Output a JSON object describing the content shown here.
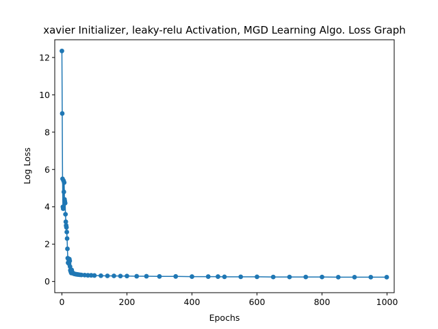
{
  "chart_data": {
    "type": "line",
    "title": "xavier Initializer, leaky-relu Activation, MGD Learning Algo. Loss Graph",
    "xlabel": "Epochs",
    "ylabel": "Log Loss",
    "xlim": [
      -22,
      1022
    ],
    "ylim": [
      -0.6,
      12.95
    ],
    "xticks": [
      0,
      200,
      400,
      600,
      800,
      1000
    ],
    "yticks": [
      0,
      2,
      4,
      6,
      8,
      10,
      12
    ],
    "grid": false,
    "marker": "circle",
    "color": "#1f77b4",
    "series": [
      {
        "x": [
          0,
          1,
          2,
          3,
          4,
          5,
          6,
          7,
          8,
          9,
          10,
          11,
          12,
          13,
          14,
          15,
          16,
          17,
          18,
          19,
          20,
          21,
          22,
          23,
          24,
          25,
          26,
          27,
          28,
          29,
          30,
          32,
          34,
          36,
          38,
          40,
          43,
          46,
          50,
          55,
          60,
          70,
          80,
          90,
          100,
          120,
          140,
          160,
          180,
          200,
          230,
          260,
          300,
          350,
          400,
          450,
          480,
          500,
          550,
          600,
          650,
          700,
          750,
          800,
          850,
          900,
          950,
          999
        ],
        "y": [
          12.35,
          9.0,
          5.5,
          4.0,
          3.9,
          5.4,
          4.8,
          5.3,
          4.4,
          4.3,
          4.2,
          3.6,
          3.2,
          3.0,
          2.9,
          2.65,
          2.3,
          1.75,
          1.25,
          1.0,
          1.2,
          1.05,
          0.95,
          1.2,
          1.1,
          0.8,
          0.6,
          0.55,
          0.5,
          0.45,
          0.62,
          0.5,
          0.45,
          0.42,
          0.41,
          0.4,
          0.39,
          0.38,
          0.37,
          0.36,
          0.35,
          0.34,
          0.33,
          0.33,
          0.32,
          0.31,
          0.3,
          0.3,
          0.29,
          0.29,
          0.28,
          0.28,
          0.27,
          0.27,
          0.26,
          0.26,
          0.26,
          0.25,
          0.25,
          0.25,
          0.24,
          0.24,
          0.24,
          0.24,
          0.23,
          0.23,
          0.23,
          0.23
        ]
      }
    ]
  }
}
